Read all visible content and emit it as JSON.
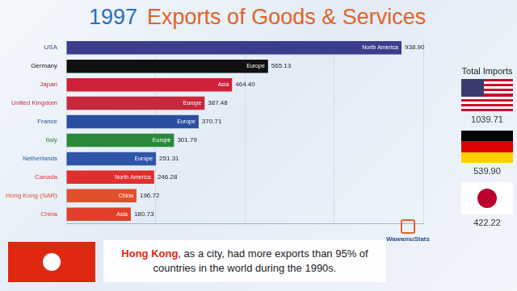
{
  "chart_data": {
    "type": "bar",
    "title_year": "1997",
    "title": "Exports of Goods & Services",
    "orientation": "horizontal",
    "categories": [
      "USA",
      "Germany",
      "Japan",
      "United Kingdom",
      "France",
      "Italy",
      "Netherlands",
      "Canada",
      "Hong Kong (SAR)",
      "China"
    ],
    "values": [
      938.9,
      565.13,
      464.4,
      387.48,
      370.71,
      301.79,
      251.31,
      246.28,
      196.72,
      180.73
    ],
    "value_labels": [
      "938.90",
      "565.13",
      "464.40",
      "387.48",
      "370.71",
      "301.79",
      "251.31",
      "246.28",
      "196.72",
      "180.73"
    ],
    "regions": [
      "North America",
      "Europe",
      "Asia",
      "Europe",
      "Europe",
      "Europe",
      "Europe",
      "North America",
      "China",
      "Asia"
    ],
    "colors": [
      "#3b3e8c",
      "#111111",
      "#d0213a",
      "#c8283c",
      "#2a4ea0",
      "#2a8a3a",
      "#2e55a8",
      "#e0302e",
      "#e0502a",
      "#e0402a"
    ],
    "xlim": [
      0,
      1000
    ],
    "xticks": [
      0,
      250,
      500,
      750,
      1000
    ],
    "grid": true,
    "data_labels": true,
    "tick_labels": "y"
  },
  "imports": {
    "title": "Total Imports",
    "values": [
      1039.71,
      539.9,
      422.22
    ],
    "value_labels": [
      "1039.71",
      "539.90",
      "422.22"
    ]
  },
  "note": {
    "highlight": "Hong Kong",
    "text": ", as a city, had more exports than 95% of countries in the world during the 1990s."
  },
  "watermark": "WawamuStats"
}
